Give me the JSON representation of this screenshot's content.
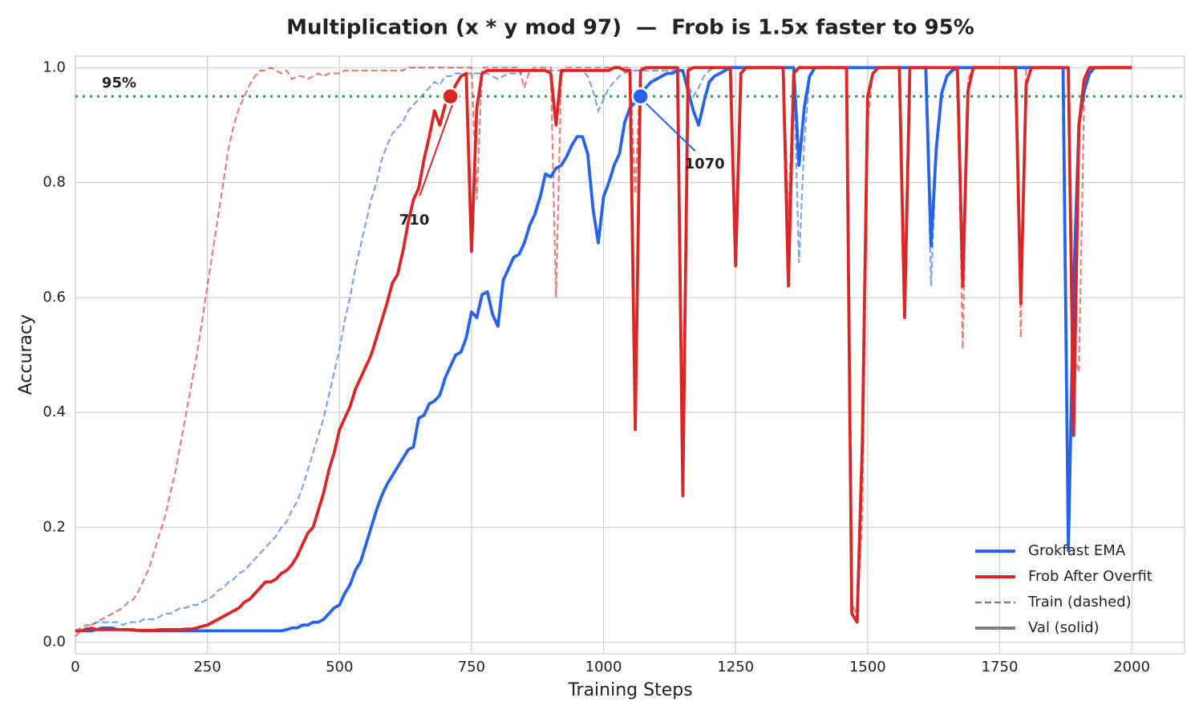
{
  "chart_data": {
    "type": "line",
    "title": "Multiplication (x * y mod 97)  —  Frob is 1.5x faster to 95%",
    "xlabel": "Training Steps",
    "ylabel": "Accuracy",
    "xlim": [
      0,
      2100
    ],
    "ylim": [
      -0.02,
      1.02
    ],
    "xticks": [
      0,
      250,
      500,
      750,
      1000,
      1250,
      1500,
      1750,
      2000
    ],
    "yticks": [
      {
        "value": 0,
        "label": "0.0"
      },
      0.2,
      0.4,
      0.6,
      0.8,
      {
        "value": 1,
        "label": "1.0"
      }
    ],
    "grid": true,
    "legend_loc": "lower right",
    "threshold": {
      "value": 0.95,
      "label": "95%",
      "color": "#22a05a"
    },
    "x": [
      0,
      10,
      20,
      30,
      40,
      50,
      60,
      70,
      80,
      90,
      100,
      110,
      120,
      130,
      140,
      150,
      160,
      170,
      180,
      190,
      200,
      210,
      220,
      230,
      240,
      250,
      260,
      270,
      280,
      290,
      300,
      310,
      320,
      330,
      340,
      350,
      360,
      370,
      380,
      390,
      400,
      410,
      420,
      430,
      440,
      450,
      460,
      470,
      480,
      490,
      500,
      510,
      520,
      530,
      540,
      550,
      560,
      570,
      580,
      590,
      600,
      610,
      620,
      630,
      640,
      650,
      660,
      670,
      680,
      690,
      700,
      710,
      720,
      730,
      740,
      750,
      760,
      770,
      780,
      790,
      800,
      810,
      820,
      830,
      840,
      850,
      860,
      870,
      880,
      890,
      900,
      910,
      920,
      930,
      940,
      950,
      960,
      970,
      980,
      990,
      1000,
      1010,
      1020,
      1030,
      1040,
      1050,
      1060,
      1070,
      1080,
      1090,
      1100,
      1110,
      1120,
      1130,
      1140,
      1150,
      1160,
      1170,
      1180,
      1190,
      1200,
      1210,
      1220,
      1230,
      1240,
      1250,
      1260,
      1270,
      1280,
      1290,
      1300,
      1310,
      1320,
      1330,
      1340,
      1350,
      1360,
      1370,
      1380,
      1390,
      1400,
      1410,
      1420,
      1430,
      1440,
      1450,
      1460,
      1470,
      1480,
      1490,
      1500,
      1510,
      1520,
      1530,
      1540,
      1550,
      1560,
      1570,
      1580,
      1590,
      1600,
      1610,
      1620,
      1630,
      1640,
      1650,
      1660,
      1670,
      1680,
      1690,
      1700,
      1710,
      1720,
      1730,
      1740,
      1750,
      1760,
      1770,
      1780,
      1790,
      1800,
      1810,
      1820,
      1830,
      1840,
      1850,
      1860,
      1870,
      1880,
      1890,
      1900,
      1910,
      1920,
      1930,
      1940,
      1950,
      1960,
      1970,
      1980,
      1990,
      2000
    ],
    "series": [
      {
        "name": "Grokfast EMA",
        "color": "#2563eb",
        "val": [
          0.02,
          0.02,
          0.02,
          0.02,
          0.022,
          0.025,
          0.025,
          0.025,
          0.022,
          0.022,
          0.022,
          0.022,
          0.02,
          0.02,
          0.02,
          0.02,
          0.02,
          0.02,
          0.02,
          0.02,
          0.02,
          0.02,
          0.02,
          0.02,
          0.02,
          0.02,
          0.02,
          0.02,
          0.02,
          0.02,
          0.02,
          0.02,
          0.02,
          0.02,
          0.02,
          0.02,
          0.02,
          0.02,
          0.02,
          0.02,
          0.022,
          0.025,
          0.025,
          0.03,
          0.03,
          0.035,
          0.035,
          0.04,
          0.05,
          0.06,
          0.065,
          0.085,
          0.1,
          0.125,
          0.14,
          0.17,
          0.2,
          0.23,
          0.255,
          0.275,
          0.29,
          0.305,
          0.32,
          0.335,
          0.34,
          0.39,
          0.395,
          0.415,
          0.42,
          0.43,
          0.46,
          0.48,
          0.5,
          0.505,
          0.53,
          0.575,
          0.565,
          0.605,
          0.61,
          0.57,
          0.55,
          0.63,
          0.65,
          0.67,
          0.675,
          0.695,
          0.725,
          0.745,
          0.775,
          0.815,
          0.81,
          0.825,
          0.83,
          0.845,
          0.865,
          0.88,
          0.88,
          0.85,
          0.755,
          0.695,
          0.775,
          0.8,
          0.83,
          0.85,
          0.905,
          0.93,
          0.94,
          0.95,
          0.965,
          0.975,
          0.98,
          0.985,
          0.99,
          0.99,
          0.995,
          0.995,
          0.96,
          0.925,
          0.9,
          0.94,
          0.975,
          0.985,
          0.99,
          0.995,
          1,
          1,
          1,
          1,
          1,
          1,
          1,
          1,
          1,
          1,
          1,
          1,
          1,
          0.83,
          0.93,
          0.985,
          1,
          1,
          1,
          1,
          1,
          1,
          1,
          1,
          1,
          1,
          1,
          1,
          1,
          1,
          1,
          1,
          1,
          1,
          1,
          1,
          1,
          1,
          0.69,
          0.86,
          0.955,
          0.985,
          0.995,
          1,
          1,
          1,
          1,
          1,
          1,
          1,
          1,
          1,
          1,
          1,
          1,
          1,
          1,
          1,
          1,
          1,
          1,
          1,
          1,
          1,
          0.16,
          0.62,
          0.9,
          0.96,
          0.99,
          1,
          1,
          1,
          1,
          1,
          1,
          1,
          1
        ],
        "train": [
          0.02,
          0.025,
          0.03,
          0.03,
          0.035,
          0.035,
          0.035,
          0.035,
          0.035,
          0.03,
          0.035,
          0.035,
          0.035,
          0.04,
          0.04,
          0.04,
          0.045,
          0.05,
          0.05,
          0.055,
          0.06,
          0.06,
          0.065,
          0.065,
          0.07,
          0.075,
          0.08,
          0.09,
          0.095,
          0.105,
          0.11,
          0.12,
          0.125,
          0.135,
          0.145,
          0.155,
          0.165,
          0.175,
          0.185,
          0.2,
          0.21,
          0.23,
          0.245,
          0.27,
          0.3,
          0.33,
          0.36,
          0.39,
          0.43,
          0.47,
          0.51,
          0.56,
          0.6,
          0.65,
          0.69,
          0.73,
          0.77,
          0.8,
          0.84,
          0.865,
          0.885,
          0.895,
          0.905,
          0.925,
          0.935,
          0.945,
          0.955,
          0.965,
          0.975,
          0.97,
          0.985,
          0.985,
          0.99,
          0.99,
          0.99,
          0.99,
          0.99,
          0.99,
          0.99,
          0.985,
          0.98,
          0.985,
          0.99,
          0.99,
          0.99,
          0.995,
          0.995,
          0.995,
          0.995,
          0.995,
          0.995,
          0.995,
          0.995,
          0.995,
          0.995,
          0.995,
          0.995,
          0.985,
          0.96,
          0.925,
          0.945,
          0.965,
          0.975,
          0.985,
          0.99,
          0.995,
          0.995,
          0.995,
          0.995,
          0.995,
          0.995,
          0.995,
          0.995,
          0.995,
          0.995,
          0.995,
          0.97,
          0.95,
          0.965,
          0.985,
          0.995,
          1,
          1,
          1,
          1,
          1,
          1,
          1,
          1,
          1,
          1,
          1,
          1,
          1,
          1,
          1,
          1,
          0.66,
          0.87,
          0.98,
          1,
          1,
          1,
          1,
          1,
          1,
          1,
          1,
          1,
          1,
          1,
          1,
          1,
          1,
          1,
          1,
          1,
          1,
          1,
          1,
          1,
          1,
          0.62,
          0.85,
          0.95,
          0.985,
          1,
          1,
          1,
          1,
          1,
          1,
          1,
          1,
          1,
          1,
          1,
          1,
          1,
          1,
          1,
          1,
          1,
          1,
          1,
          1,
          1,
          1,
          0.17,
          0.6,
          0.9,
          0.96,
          0.99,
          1,
          1,
          1,
          1,
          1,
          1,
          1,
          1
        ]
      },
      {
        "name": "Frob After Overfit",
        "color": "#dc2626",
        "val": [
          0.02,
          0.02,
          0.022,
          0.025,
          0.022,
          0.022,
          0.022,
          0.022,
          0.022,
          0.022,
          0.022,
          0.021,
          0.021,
          0.021,
          0.021,
          0.021,
          0.022,
          0.022,
          0.022,
          0.022,
          0.022,
          0.023,
          0.023,
          0.025,
          0.028,
          0.03,
          0.035,
          0.04,
          0.045,
          0.05,
          0.055,
          0.06,
          0.07,
          0.075,
          0.085,
          0.095,
          0.105,
          0.105,
          0.11,
          0.12,
          0.125,
          0.135,
          0.15,
          0.17,
          0.19,
          0.2,
          0.23,
          0.26,
          0.3,
          0.33,
          0.37,
          0.39,
          0.41,
          0.44,
          0.46,
          0.48,
          0.5,
          0.53,
          0.56,
          0.59,
          0.625,
          0.64,
          0.68,
          0.73,
          0.77,
          0.79,
          0.84,
          0.88,
          0.925,
          0.9,
          0.935,
          0.95,
          0.97,
          0.985,
          0.99,
          0.68,
          0.93,
          0.99,
          0.995,
          0.995,
          0.995,
          0.995,
          0.995,
          0.995,
          0.995,
          0.995,
          0.995,
          0.995,
          0.995,
          0.995,
          0.99,
          0.9,
          0.995,
          0.995,
          0.995,
          0.995,
          0.995,
          0.995,
          0.995,
          0.995,
          0.995,
          0.995,
          1,
          1,
          0.995,
          0.995,
          0.37,
          0.995,
          1,
          1,
          1,
          1,
          1,
          1,
          1,
          0.255,
          0.995,
          1,
          1,
          1,
          1,
          1,
          1,
          1,
          1,
          0.655,
          0.99,
          1,
          1,
          1,
          1,
          1,
          1,
          1,
          1,
          0.62,
          0.99,
          1,
          1,
          1,
          1,
          1,
          1,
          1,
          1,
          1,
          1,
          0.05,
          0.035,
          0.35,
          0.95,
          0.99,
          1,
          1,
          1,
          1,
          1,
          0.565,
          1,
          1,
          1,
          1,
          1,
          1,
          1,
          1,
          1,
          1,
          0.62,
          0.96,
          1,
          1,
          1,
          1,
          1,
          1,
          1,
          1,
          1,
          0.59,
          0.97,
          1,
          1,
          1,
          1,
          1,
          1,
          1,
          1,
          0.36,
          0.9,
          0.98,
          1,
          1,
          1,
          1,
          1,
          1,
          1,
          1,
          1
        ],
        "train": [
          0.01,
          0.02,
          0.025,
          0.03,
          0.035,
          0.04,
          0.045,
          0.05,
          0.055,
          0.06,
          0.07,
          0.075,
          0.09,
          0.11,
          0.13,
          0.16,
          0.19,
          0.22,
          0.26,
          0.3,
          0.35,
          0.4,
          0.45,
          0.5,
          0.56,
          0.62,
          0.68,
          0.74,
          0.8,
          0.86,
          0.9,
          0.93,
          0.95,
          0.97,
          0.985,
          0.995,
          0.995,
          1,
          0.995,
          0.99,
          0.995,
          0.98,
          0.985,
          0.985,
          0.98,
          0.985,
          0.99,
          0.985,
          0.99,
          0.99,
          0.99,
          0.995,
          0.995,
          0.995,
          0.995,
          0.995,
          0.995,
          0.995,
          0.995,
          0.995,
          0.995,
          0.995,
          0.995,
          1,
          1,
          1,
          1,
          1,
          1,
          1,
          1,
          1,
          1,
          1,
          1,
          1,
          0.77,
          1,
          1,
          1,
          1,
          1,
          1,
          1,
          1,
          0.965,
          0.995,
          1,
          1,
          1,
          1,
          0.6,
          0.99,
          1,
          1,
          1,
          1,
          1,
          1,
          1,
          1,
          1,
          1,
          1,
          1,
          1,
          0.78,
          1,
          1,
          1,
          1,
          1,
          1,
          1,
          1,
          0.37,
          1,
          1,
          1,
          1,
          1,
          1,
          1,
          1,
          1,
          0.71,
          1,
          1,
          1,
          1,
          1,
          1,
          1,
          1,
          1,
          0.74,
          1,
          1,
          1,
          1,
          1,
          1,
          1,
          1,
          1,
          1,
          1,
          0.07,
          0.045,
          0.22,
          0.9,
          1,
          1,
          1,
          1,
          1,
          1,
          0.65,
          1,
          1,
          1,
          1,
          1,
          1,
          1,
          1,
          1,
          1,
          0.51,
          0.98,
          1,
          1,
          1,
          1,
          1,
          1,
          1,
          1,
          1,
          0.53,
          1,
          1,
          1,
          1,
          1,
          1,
          1,
          1,
          1,
          0.5,
          0.47,
          0.95,
          1,
          1,
          1,
          1,
          1,
          1,
          1,
          1,
          1
        ]
      }
    ],
    "style_key": [
      {
        "label": "Train (dashed)",
        "dash": true
      },
      {
        "label": "Val (solid)",
        "dash": false
      }
    ],
    "style_key_color": "#808080",
    "annotations": [
      {
        "series": 1,
        "x": 710,
        "y": 0.95
      },
      {
        "series": 0,
        "x": 1070,
        "y": 0.95
      }
    ]
  }
}
